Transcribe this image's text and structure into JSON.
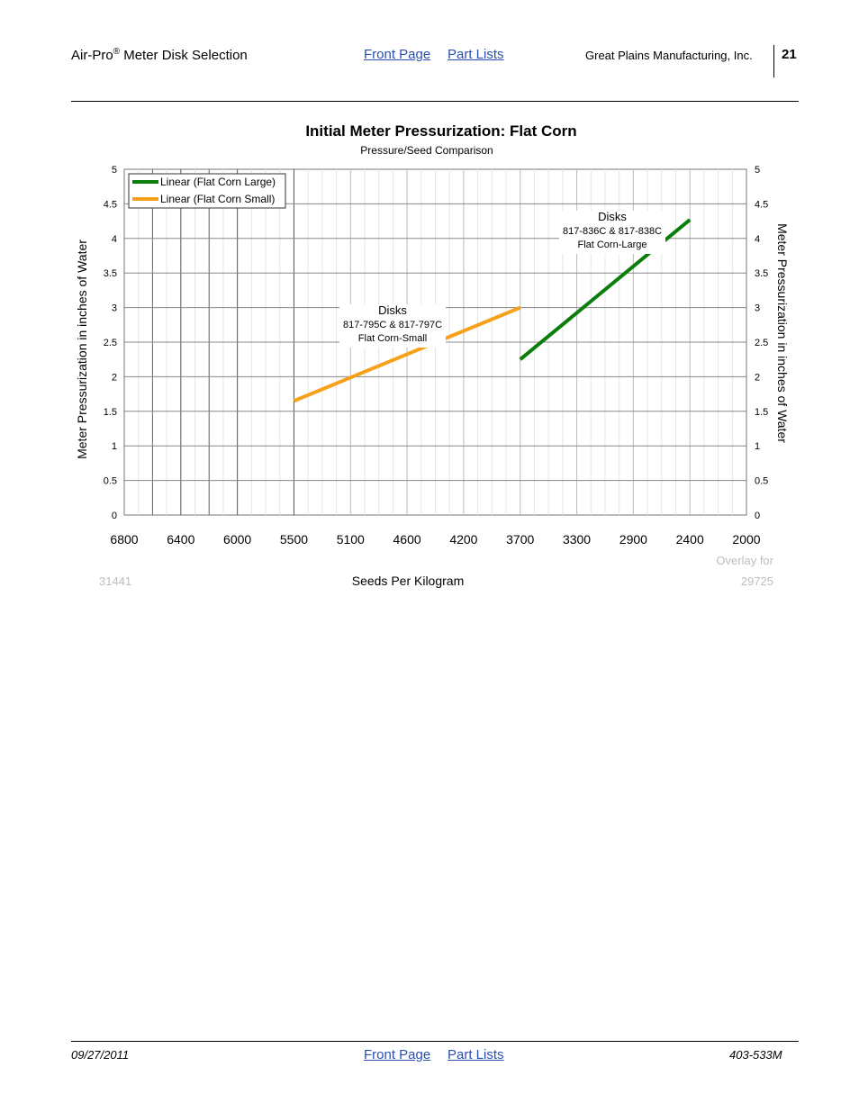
{
  "header": {
    "title_main": "Air-Pro",
    "title_sup": "®",
    "title_rest": " Meter Disk Selection",
    "link_front": "Front Page",
    "link_parts": "Part Lists",
    "company": "Great Plains Manufacturing, Inc.",
    "page_number": "21"
  },
  "footer": {
    "date": "09/27/2011",
    "link_front": "Front Page",
    "link_parts": "Part Lists",
    "doc_number": "403-533M"
  },
  "chart_data": {
    "type": "line",
    "title": "Initial Meter Pressurization: Flat Corn",
    "subtitle": "Pressure/Seed Comparison",
    "xlabel": "Seeds Per Kilogram",
    "ylabel": "Meter Pressurization in inches of Water",
    "ylabel_right": "Meter Pressurization in inches of Water",
    "x_tick_labels": [
      "6800",
      "6400",
      "6000",
      "5500",
      "5100",
      "4600",
      "4200",
      "3700",
      "3300",
      "2900",
      "2400",
      "2000"
    ],
    "y_ticks": [
      "0",
      "0.5",
      "1",
      "1.5",
      "2",
      "2.5",
      "3",
      "3.5",
      "4",
      "4.5",
      "5"
    ],
    "ylim": [
      0,
      5
    ],
    "legend_position": "top-left",
    "series": [
      {
        "name": "Linear (Flat Corn Large)",
        "color": "#0a7d0a",
        "points": [
          [
            3700,
            2.25
          ],
          [
            2400,
            4.27
          ]
        ]
      },
      {
        "name": "Linear (Flat Corn Small)",
        "color": "#f7a11a",
        "points": [
          [
            5500,
            1.65
          ],
          [
            3700,
            3.0
          ]
        ]
      }
    ],
    "annotations": [
      {
        "lines": [
          "Disks",
          "817-836C & 817-838C",
          "Flat Corn-Large"
        ]
      },
      {
        "lines": [
          "Disks",
          "817-795C & 817-797C",
          "Flat Corn-Small"
        ]
      }
    ],
    "corner_notes": {
      "left": "31441",
      "right_top": "Overlay for",
      "right_bottom": "29725"
    }
  }
}
